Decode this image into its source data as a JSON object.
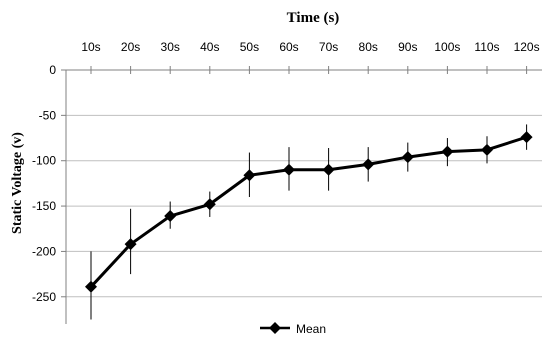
{
  "chart_data": {
    "type": "line",
    "title": "Time (s)",
    "xlabel": "Time (s)",
    "ylabel": "Static Voltage (v)",
    "x_position": "top",
    "categories": [
      "10s",
      "20s",
      "30s",
      "40s",
      "50s",
      "60s",
      "70s",
      "80s",
      "90s",
      "100s",
      "110s",
      "120s"
    ],
    "yticks": [
      0,
      -50,
      -100,
      -150,
      -200,
      -250
    ],
    "ylim": [
      -280,
      0
    ],
    "grid": "horizontal",
    "legend": "bottom-center",
    "series": [
      {
        "name": "Mean",
        "values": [
          -239,
          -192,
          -161,
          -148,
          -116,
          -110,
          -110,
          -104,
          -96,
          -90,
          -88,
          -74
        ],
        "error_lower": [
          -275,
          -225,
          -175,
          -162,
          -140,
          -133,
          -133,
          -123,
          -112,
          -106,
          -103,
          -88
        ],
        "error_upper": [
          -200,
          -153,
          -145,
          -134,
          -91,
          -85,
          -86,
          -85,
          -80,
          -75,
          -73,
          -60
        ],
        "color": "#000000",
        "marker": "diamond"
      }
    ]
  },
  "colors": {
    "line": "#000000",
    "grid": "#bfbfbf",
    "axis": "#808080",
    "text": "#000000"
  }
}
